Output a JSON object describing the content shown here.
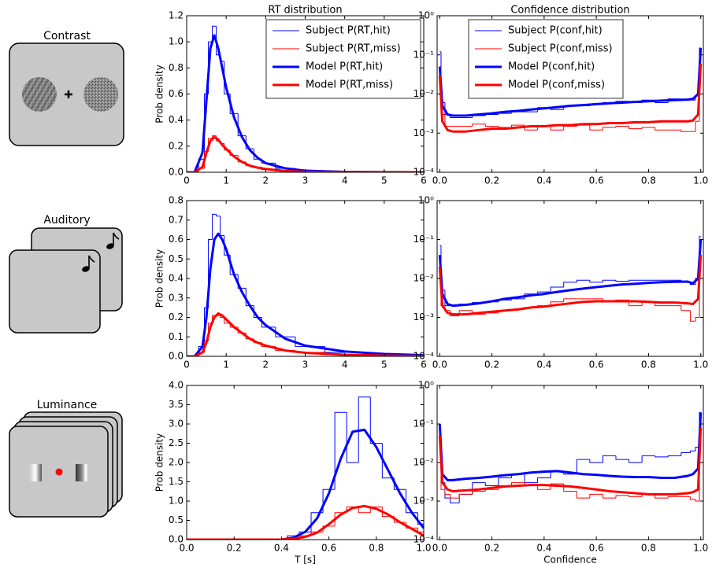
{
  "stimuli": [
    "Contrast",
    "Auditory",
    "Luminance"
  ],
  "chart_data": [
    {
      "type": "line",
      "title": "RT distribution",
      "y_label": "Prob density",
      "legend": "upper right",
      "x": [
        0,
        0.2,
        0.4,
        0.5,
        0.6,
        0.7,
        0.8,
        0.9,
        1.0,
        1.2,
        1.4,
        1.6,
        1.8,
        2.0,
        2.5,
        3.0,
        4.0,
        5.0,
        6.0
      ],
      "xlim": [
        0,
        6
      ],
      "xticks": [
        0,
        1,
        2,
        3,
        4,
        5,
        6
      ],
      "ylim": [
        0,
        1.2
      ],
      "yticks": [
        {
          "value": 0,
          "label": "0.0"
        },
        0.2,
        0.4,
        0.6,
        0.8,
        {
          "value": 1,
          "label": "1.0"
        },
        1.2
      ],
      "series": [
        {
          "name": "Subject P(RT,hit)",
          "color": "#0000ff",
          "step": true,
          "linewidth": 1,
          "values": [
            0,
            0,
            0.1,
            0.6,
            1.0,
            1.12,
            0.9,
            0.85,
            0.6,
            0.45,
            0.28,
            0.18,
            0.1,
            0.07,
            0.03,
            0.01,
            0.003,
            0,
            0
          ]
        },
        {
          "name": "Subject P(RT,miss)",
          "color": "#ff0000",
          "step": true,
          "linewidth": 1,
          "values": [
            0,
            0,
            0.03,
            0.16,
            0.26,
            0.28,
            0.24,
            0.22,
            0.17,
            0.13,
            0.08,
            0.05,
            0.04,
            0.02,
            0.01,
            0.005,
            0,
            0,
            0
          ]
        },
        {
          "name": "Model P(RT,hit)",
          "color": "#0000ff",
          "linewidth": 3,
          "values": [
            0,
            0,
            0.15,
            0.55,
            0.95,
            1.05,
            0.95,
            0.8,
            0.65,
            0.42,
            0.27,
            0.17,
            0.11,
            0.07,
            0.03,
            0.012,
            0.003,
            0.001,
            0
          ]
        },
        {
          "name": "Model P(RT,miss)",
          "color": "#ff0000",
          "linewidth": 3,
          "values": [
            0,
            0,
            0.04,
            0.15,
            0.24,
            0.27,
            0.25,
            0.21,
            0.18,
            0.12,
            0.08,
            0.05,
            0.035,
            0.025,
            0.01,
            0.004,
            0.001,
            0,
            0
          ]
        }
      ]
    },
    {
      "type": "line",
      "title": "Confidence distribution",
      "legend": "upper left",
      "log": true,
      "x": [
        0,
        0.01,
        0.03,
        0.05,
        0.1,
        0.15,
        0.2,
        0.25,
        0.3,
        0.35,
        0.4,
        0.45,
        0.5,
        0.55,
        0.6,
        0.65,
        0.7,
        0.75,
        0.8,
        0.85,
        0.9,
        0.95,
        0.97,
        0.99,
        1.0
      ],
      "xlim": [
        -0.01,
        1.01
      ],
      "xticks": [
        {
          "value": 0,
          "label": "0.0"
        },
        0.2,
        0.4,
        0.6,
        0.8,
        {
          "value": 1,
          "label": "1.0"
        }
      ],
      "ylim": [
        0.0001,
        1
      ],
      "yticks": [
        {
          "value": 0.0001,
          "label": "10⁻⁴"
        },
        {
          "value": 0.001,
          "label": "10⁻³"
        },
        {
          "value": 0.01,
          "label": "10⁻²"
        },
        {
          "value": 0.1,
          "label": "10⁻¹"
        },
        {
          "value": 1,
          "label": "10⁰"
        }
      ],
      "series": [
        {
          "name": "Subject P(conf,hit)",
          "color": "#0000ff",
          "step": true,
          "linewidth": 1,
          "values": [
            0.12,
            0.006,
            0.003,
            0.0025,
            0.0025,
            0.0028,
            0.003,
            0.0032,
            0.0035,
            0.0035,
            0.0045,
            0.004,
            0.005,
            0.005,
            0.0055,
            0.006,
            0.0065,
            0.006,
            0.007,
            0.006,
            0.0075,
            0.007,
            0.007,
            0.009,
            0.15
          ]
        },
        {
          "name": "Subject P(conf,miss)",
          "color": "#ff0000",
          "step": true,
          "linewidth": 1,
          "values": [
            0.05,
            0.003,
            0.0015,
            0.0015,
            0.0015,
            0.0017,
            0.0015,
            0.0014,
            0.0016,
            0.0012,
            0.0015,
            0.0012,
            0.0015,
            0.0016,
            0.0012,
            0.0014,
            0.0015,
            0.0013,
            0.0014,
            0.0012,
            0.0012,
            0.0011,
            0.0011,
            0.002,
            0.05
          ]
        },
        {
          "name": "Model P(conf,hit)",
          "color": "#0000ff",
          "linewidth": 3,
          "values": [
            0.05,
            0.005,
            0.003,
            0.0028,
            0.0028,
            0.003,
            0.0032,
            0.0035,
            0.0037,
            0.004,
            0.0043,
            0.0046,
            0.005,
            0.0052,
            0.0055,
            0.0058,
            0.006,
            0.0063,
            0.0065,
            0.0068,
            0.007,
            0.0072,
            0.0075,
            0.01,
            0.15
          ]
        },
        {
          "name": "Model P(conf,miss)",
          "color": "#ff0000",
          "linewidth": 3,
          "values": [
            0.03,
            0.002,
            0.0012,
            0.0011,
            0.0011,
            0.0012,
            0.0013,
            0.0013,
            0.0014,
            0.0015,
            0.0015,
            0.0016,
            0.0016,
            0.0017,
            0.0017,
            0.0018,
            0.0018,
            0.0019,
            0.0019,
            0.002,
            0.002,
            0.002,
            0.0021,
            0.003,
            0.06
          ]
        }
      ]
    },
    {
      "type": "line",
      "y_label": "Prob density",
      "x": [
        0,
        0.2,
        0.4,
        0.5,
        0.6,
        0.7,
        0.8,
        0.9,
        1.0,
        1.2,
        1.4,
        1.6,
        1.8,
        2.0,
        2.5,
        3.0,
        4.0,
        5.0,
        6.0
      ],
      "xlim": [
        0,
        6
      ],
      "xticks": [
        0,
        1,
        2,
        3,
        4,
        5,
        6
      ],
      "ylim": [
        0,
        0.8
      ],
      "yticks": [
        {
          "value": 0,
          "label": "0.0"
        },
        0.1,
        0.2,
        0.3,
        0.4,
        0.5,
        0.6,
        0.7,
        0.8
      ],
      "series": [
        {
          "color": "#0000ff",
          "step": true,
          "linewidth": 1,
          "values": [
            0,
            0,
            0.05,
            0.25,
            0.6,
            0.73,
            0.72,
            0.62,
            0.52,
            0.42,
            0.35,
            0.26,
            0.2,
            0.15,
            0.1,
            0.05,
            0.02,
            0.01,
            0.005
          ]
        },
        {
          "color": "#ff0000",
          "step": true,
          "linewidth": 1,
          "values": [
            0,
            0,
            0.02,
            0.08,
            0.17,
            0.21,
            0.21,
            0.2,
            0.17,
            0.15,
            0.12,
            0.09,
            0.07,
            0.05,
            0.03,
            0.02,
            0.008,
            0.004,
            0.002
          ]
        },
        {
          "color": "#0000ff",
          "linewidth": 3,
          "values": [
            0,
            0,
            0.05,
            0.2,
            0.45,
            0.6,
            0.63,
            0.6,
            0.55,
            0.42,
            0.33,
            0.26,
            0.2,
            0.16,
            0.09,
            0.055,
            0.025,
            0.012,
            0.006
          ]
        },
        {
          "color": "#ff0000",
          "linewidth": 3,
          "values": [
            0,
            0,
            0.02,
            0.07,
            0.15,
            0.2,
            0.22,
            0.21,
            0.19,
            0.15,
            0.12,
            0.09,
            0.07,
            0.055,
            0.03,
            0.018,
            0.008,
            0.004,
            0.002
          ]
        }
      ]
    },
    {
      "type": "line",
      "log": true,
      "x": [
        0,
        0.01,
        0.03,
        0.05,
        0.1,
        0.15,
        0.2,
        0.25,
        0.3,
        0.35,
        0.4,
        0.45,
        0.5,
        0.55,
        0.6,
        0.65,
        0.7,
        0.75,
        0.8,
        0.85,
        0.9,
        0.95,
        0.97,
        0.99,
        1.0
      ],
      "xlim": [
        -0.01,
        1.01
      ],
      "xticks": [
        {
          "value": 0,
          "label": "0.0"
        },
        0.2,
        0.4,
        0.6,
        0.8,
        {
          "value": 1,
          "label": "1.0"
        }
      ],
      "ylim": [
        0.0001,
        1
      ],
      "yticks": [
        {
          "value": 0.0001,
          "label": "10⁻⁴"
        },
        {
          "value": 0.001,
          "label": "10⁻³"
        },
        {
          "value": 0.01,
          "label": "10⁻²"
        },
        {
          "value": 0.1,
          "label": "10⁻¹"
        },
        {
          "value": 1,
          "label": "10⁰"
        }
      ],
      "series": [
        {
          "color": "#0000ff",
          "step": true,
          "linewidth": 1,
          "values": [
            0.07,
            0.005,
            0.002,
            0.002,
            0.0022,
            0.0024,
            0.0025,
            0.0028,
            0.003,
            0.004,
            0.0045,
            0.006,
            0.008,
            0.009,
            0.008,
            0.009,
            0.0085,
            0.009,
            0.009,
            0.009,
            0.009,
            0.008,
            0.007,
            0.01,
            0.12
          ]
        },
        {
          "color": "#ff0000",
          "step": true,
          "linewidth": 1,
          "values": [
            0.03,
            0.002,
            0.0015,
            0.0011,
            0.0015,
            0.0012,
            0.0013,
            0.0015,
            0.0016,
            0.0018,
            0.002,
            0.0025,
            0.003,
            0.003,
            0.003,
            0.0025,
            0.0028,
            0.002,
            0.0025,
            0.002,
            0.002,
            0.0015,
            0.0008,
            0.001,
            0.02
          ]
        },
        {
          "color": "#0000ff",
          "linewidth": 3,
          "values": [
            0.04,
            0.004,
            0.0022,
            0.002,
            0.0021,
            0.0023,
            0.0026,
            0.003,
            0.0033,
            0.0037,
            0.004,
            0.0045,
            0.005,
            0.0055,
            0.006,
            0.0065,
            0.007,
            0.0073,
            0.0077,
            0.008,
            0.0082,
            0.0083,
            0.0075,
            0.01,
            0.1
          ]
        },
        {
          "color": "#ff0000",
          "linewidth": 3,
          "values": [
            0.02,
            0.002,
            0.0013,
            0.0012,
            0.0012,
            0.0013,
            0.0014,
            0.0015,
            0.0016,
            0.0018,
            0.0019,
            0.0021,
            0.0023,
            0.0025,
            0.0026,
            0.0026,
            0.0026,
            0.0026,
            0.0025,
            0.0024,
            0.0024,
            0.0023,
            0.0022,
            0.003,
            0.04
          ]
        }
      ]
    },
    {
      "type": "line",
      "y_label": "Prob density",
      "x_label": "T [s]",
      "x": [
        0,
        0.05,
        0.1,
        0.15,
        0.2,
        0.25,
        0.3,
        0.35,
        0.4,
        0.45,
        0.5,
        0.55,
        0.6,
        0.65,
        0.7,
        0.75,
        0.8,
        0.85,
        0.9,
        0.95,
        1.0
      ],
      "xlim": [
        0,
        1
      ],
      "xticks": [
        {
          "value": 0,
          "label": "0.0"
        },
        0.2,
        0.4,
        0.6,
        0.8,
        {
          "value": 1,
          "label": "1.0"
        }
      ],
      "ylim": [
        0,
        4
      ],
      "yticks": [
        {
          "value": 0,
          "label": "0.0"
        },
        0.5,
        {
          "value": 1,
          "label": "1.0"
        },
        1.5,
        {
          "value": 2,
          "label": "2.0"
        },
        2.5,
        {
          "value": 3,
          "label": "3.0"
        },
        3.5,
        {
          "value": 4,
          "label": "4.0"
        }
      ],
      "series": [
        {
          "color": "#0000ff",
          "step": true,
          "linewidth": 1,
          "values": [
            0,
            0,
            0,
            0,
            0,
            0,
            0,
            0,
            0,
            0.1,
            0.2,
            0.7,
            1.3,
            3.3,
            2.0,
            3.7,
            2.5,
            1.6,
            1.3,
            0.7,
            0.4
          ]
        },
        {
          "color": "#ff0000",
          "step": true,
          "linewidth": 1,
          "values": [
            0,
            0,
            0,
            0,
            0,
            0,
            0,
            0,
            0,
            0,
            0.1,
            0.2,
            0.35,
            0.7,
            0.85,
            0.7,
            0.85,
            0.6,
            0.45,
            0.3,
            0.2
          ]
        },
        {
          "color": "#0000ff",
          "linewidth": 3,
          "values": [
            0,
            0,
            0,
            0,
            0,
            0,
            0,
            0,
            0,
            0.05,
            0.2,
            0.55,
            1.2,
            2.1,
            2.8,
            2.85,
            2.4,
            1.8,
            1.2,
            0.7,
            0.3
          ]
        },
        {
          "color": "#ff0000",
          "linewidth": 3,
          "values": [
            0,
            0,
            0,
            0,
            0,
            0,
            0,
            0,
            0,
            0.02,
            0.07,
            0.18,
            0.4,
            0.65,
            0.82,
            0.87,
            0.8,
            0.65,
            0.45,
            0.28,
            0.1
          ]
        }
      ]
    },
    {
      "type": "line",
      "log": true,
      "x_label": "Confidence",
      "x": [
        0,
        0.01,
        0.03,
        0.05,
        0.1,
        0.15,
        0.2,
        0.25,
        0.3,
        0.35,
        0.4,
        0.45,
        0.5,
        0.55,
        0.6,
        0.65,
        0.7,
        0.75,
        0.8,
        0.85,
        0.9,
        0.95,
        0.97,
        0.99,
        1.0
      ],
      "xlim": [
        -0.01,
        1.01
      ],
      "xticks": [
        {
          "value": 0,
          "label": "0.0"
        },
        0.2,
        0.4,
        0.6,
        0.8,
        {
          "value": 1,
          "label": "1.0"
        }
      ],
      "ylim": [
        0.0001,
        1
      ],
      "yticks": [
        {
          "value": 0.0001,
          "label": "10⁻⁴"
        },
        {
          "value": 0.001,
          "label": "10⁻³"
        },
        {
          "value": 0.01,
          "label": "10⁻²"
        },
        {
          "value": 0.1,
          "label": "10⁻¹"
        },
        {
          "value": 1,
          "label": "10⁰"
        }
      ],
      "series": [
        {
          "color": "#0000ff",
          "step": true,
          "linewidth": 1,
          "values": [
            0.05,
            0.003,
            0.0012,
            0.0009,
            0.0015,
            0.003,
            0.0025,
            0.004,
            0.005,
            0.003,
            0.004,
            0.006,
            0.005,
            0.012,
            0.01,
            0.015,
            0.012,
            0.01,
            0.015,
            0.014,
            0.015,
            0.018,
            0.02,
            0.025,
            0.2
          ]
        },
        {
          "color": "#ff0000",
          "step": true,
          "linewidth": 1,
          "values": [
            0.03,
            0.002,
            0.0015,
            0.0012,
            0.0015,
            0.0018,
            0.002,
            0.0025,
            0.003,
            0.0025,
            0.002,
            0.0028,
            0.0018,
            0.0012,
            0.0015,
            0.0012,
            0.0014,
            0.0013,
            0.0015,
            0.0012,
            0.0013,
            0.0013,
            0.0011,
            0.001,
            0.03
          ]
        },
        {
          "color": "#0000ff",
          "linewidth": 3,
          "values": [
            0.1,
            0.005,
            0.0035,
            0.0035,
            0.0038,
            0.004,
            0.0043,
            0.0047,
            0.005,
            0.0055,
            0.0058,
            0.006,
            0.0055,
            0.005,
            0.0048,
            0.0045,
            0.0043,
            0.0042,
            0.0042,
            0.004,
            0.004,
            0.0045,
            0.005,
            0.007,
            0.2
          ]
        },
        {
          "color": "#ff0000",
          "linewidth": 3,
          "values": [
            0.05,
            0.003,
            0.002,
            0.0018,
            0.0019,
            0.002,
            0.0022,
            0.0024,
            0.0025,
            0.0026,
            0.0026,
            0.0025,
            0.0024,
            0.0022,
            0.002,
            0.0018,
            0.0017,
            0.0016,
            0.0015,
            0.0015,
            0.0015,
            0.0016,
            0.0017,
            0.002,
            0.08
          ]
        }
      ]
    }
  ]
}
